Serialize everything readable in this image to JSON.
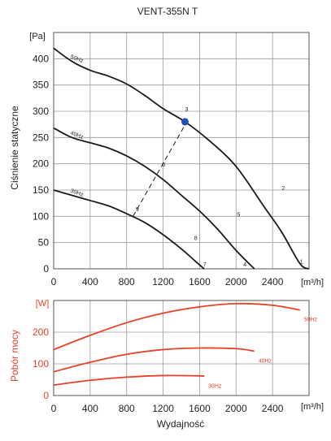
{
  "colors": {
    "black": "#1a1a1a",
    "red": "#e8412a",
    "grid": "#9a9a9a",
    "marker": "#1f4fb0"
  },
  "chart_data": [
    {
      "type": "line",
      "title": "VENT-355N T",
      "xlabel": "",
      "ylabel": "Ciśnienie statyczne",
      "yunit": "[Pa]",
      "xunit": "[m³/h]",
      "xlim": [
        0,
        2800
      ],
      "ylim": [
        0,
        450
      ],
      "xticks": [
        "0",
        "400",
        "800",
        "1200",
        "1600",
        "2000",
        "2400"
      ],
      "yticks": [
        "0",
        "50",
        "100",
        "150",
        "200",
        "250",
        "300",
        "350",
        "400"
      ],
      "grid": true,
      "series": [
        {
          "name": "50Hz",
          "x": [
            0,
            200,
            400,
            600,
            800,
            1000,
            1200,
            1440,
            1700,
            2000,
            2300,
            2500,
            2700,
            2800
          ],
          "y": [
            420,
            395,
            378,
            367,
            352,
            330,
            305,
            280,
            245,
            195,
            120,
            70,
            10,
            0
          ]
        },
        {
          "name": "40Hz",
          "x": [
            0,
            200,
            400,
            600,
            800,
            1000,
            1200,
            1400,
            1600,
            1800,
            2000,
            2200
          ],
          "y": [
            268,
            250,
            240,
            230,
            215,
            195,
            170,
            140,
            110,
            75,
            35,
            0
          ]
        },
        {
          "name": "30Hz",
          "x": [
            0,
            200,
            400,
            600,
            800,
            1000,
            1200,
            1400,
            1550,
            1650
          ],
          "y": [
            150,
            140,
            130,
            120,
            105,
            88,
            65,
            38,
            15,
            0
          ]
        }
      ],
      "lines": [
        {
          "name": "dashed",
          "x": [
            870,
            1460
          ],
          "y": [
            100,
            280
          ]
        }
      ],
      "point_labels": [
        {
          "text": "3",
          "x": 1440,
          "y": 300
        },
        {
          "text": "2",
          "x": 2500,
          "y": 150
        },
        {
          "text": "5",
          "x": 2010,
          "y": 100
        },
        {
          "text": "4",
          "x": 2080,
          "y": 5
        },
        {
          "text": "1",
          "x": 2700,
          "y": 10
        },
        {
          "text": "6",
          "x": 1190,
          "y": 195
        },
        {
          "text": "9",
          "x": 900,
          "y": 110
        },
        {
          "text": "8",
          "x": 1540,
          "y": 55
        },
        {
          "text": "7",
          "x": 1640,
          "y": 5
        }
      ],
      "marker": {
        "x": 1440,
        "y": 280
      }
    },
    {
      "type": "line",
      "xlabel": "Wydajność",
      "ylabel": "Pobór mocy",
      "yunit": "[W]",
      "xunit": "[m³/h]",
      "xlim": [
        0,
        2800
      ],
      "ylim": [
        0,
        300
      ],
      "xticks": [
        "0",
        "400",
        "800",
        "1200",
        "1600",
        "2000",
        "2400"
      ],
      "yticks": [
        "0",
        "100",
        "200"
      ],
      "grid": true,
      "series": [
        {
          "name": "50Hz",
          "x": [
            0,
            400,
            800,
            1200,
            1600,
            2000,
            2400,
            2700
          ],
          "y": [
            145,
            190,
            230,
            260,
            280,
            290,
            285,
            270
          ]
        },
        {
          "name": "40Hz",
          "x": [
            0,
            400,
            800,
            1200,
            1600,
            2000,
            2200
          ],
          "y": [
            75,
            105,
            130,
            145,
            150,
            148,
            140
          ]
        },
        {
          "name": "30Hz",
          "x": [
            0,
            400,
            800,
            1200,
            1600,
            1650
          ],
          "y": [
            33,
            48,
            58,
            63,
            62,
            60
          ]
        }
      ]
    }
  ]
}
